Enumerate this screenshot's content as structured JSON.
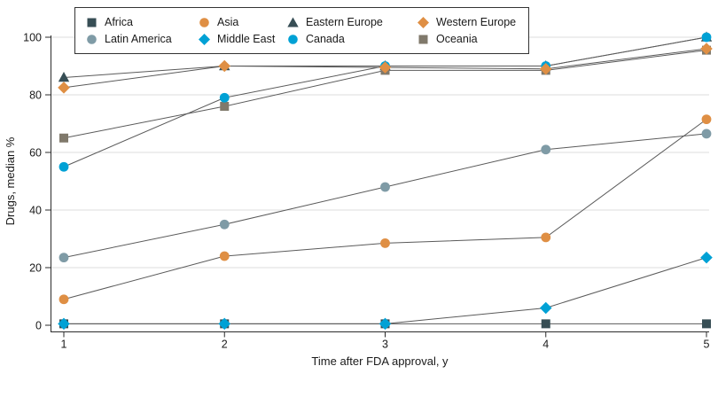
{
  "chart_data": {
    "type": "line",
    "title": "",
    "xlabel": "Time after FDA approval, y",
    "ylabel": "Drugs, median %",
    "x": [
      1,
      2,
      3,
      4,
      5
    ],
    "xlim": [
      1,
      5
    ],
    "ylim": [
      0,
      100
    ],
    "yticks": [
      0,
      20,
      40,
      60,
      80,
      100
    ],
    "xticks": [
      "1",
      "2",
      "3",
      "4",
      "5"
    ],
    "ytick_labels": [
      "0",
      "20",
      "40",
      "60",
      "80",
      "100"
    ],
    "grid": true,
    "legend_position": "top",
    "line_color": "#5a5a5a",
    "grid_color": "#dcdcdc",
    "axis_color": "#2b2b2b",
    "series": [
      {
        "name": "Africa",
        "shape": "square",
        "color": "#374E55",
        "values": [
          0.5,
          0.5,
          0.5,
          0.5,
          0.5
        ]
      },
      {
        "name": "Asia",
        "shape": "circle",
        "color": "#DF8F44",
        "values": [
          9,
          24,
          28.5,
          30.5,
          71.5
        ]
      },
      {
        "name": "Eastern Europe",
        "shape": "triangle",
        "color": "#374E55",
        "values": [
          86,
          90,
          90,
          90,
          100
        ]
      },
      {
        "name": "Western Europe",
        "shape": "diamond",
        "color": "#DF8F44",
        "values": [
          82.5,
          90,
          89.5,
          89,
          96
        ]
      },
      {
        "name": "Latin America",
        "shape": "circle",
        "color": "#7F9BA6",
        "values": [
          23.5,
          35,
          48,
          61,
          66.5
        ]
      },
      {
        "name": "Middle East",
        "shape": "diamond",
        "color": "#00A1D5",
        "values": [
          0.5,
          0.5,
          0.5,
          6,
          23.5
        ]
      },
      {
        "name": "Canada",
        "shape": "circle",
        "color": "#00A1D5",
        "values": [
          55,
          79,
          90,
          90,
          100
        ]
      },
      {
        "name": "Oceania",
        "shape": "square",
        "color": "#80796B",
        "values": [
          65,
          76,
          88.5,
          88.5,
          95.5
        ]
      }
    ],
    "z_order": [
      "Africa",
      "Latin America",
      "Asia",
      "Eastern Europe",
      "Oceania",
      "Canada",
      "Western Europe",
      "Middle East"
    ]
  }
}
